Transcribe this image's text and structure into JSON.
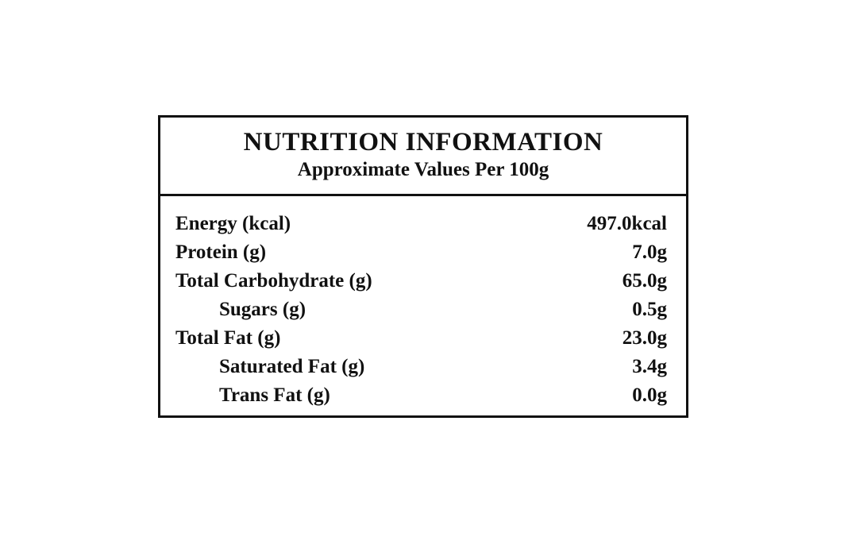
{
  "header": {
    "title": "NUTRITION INFORMATION",
    "subtitle": "Approximate Values Per 100g"
  },
  "table": {
    "rows": [
      {
        "label": "Energy (kcal)",
        "value": "497.0kcal"
      },
      {
        "label": "Protein (g)",
        "value": "7.0g"
      },
      {
        "label": "Total Carbohydrate (g)",
        "value": "65.0g",
        "sub_rows": [
          {
            "label": "Sugars (g)",
            "value": "0.5g"
          }
        ]
      },
      {
        "label": "Total Fat (g)",
        "value": "23.0g",
        "sub_rows": [
          {
            "label": "Saturated Fat (g)",
            "value": "3.4g"
          },
          {
            "label": "Trans Fat (g)",
            "value": "0.0g"
          }
        ]
      }
    ]
  }
}
